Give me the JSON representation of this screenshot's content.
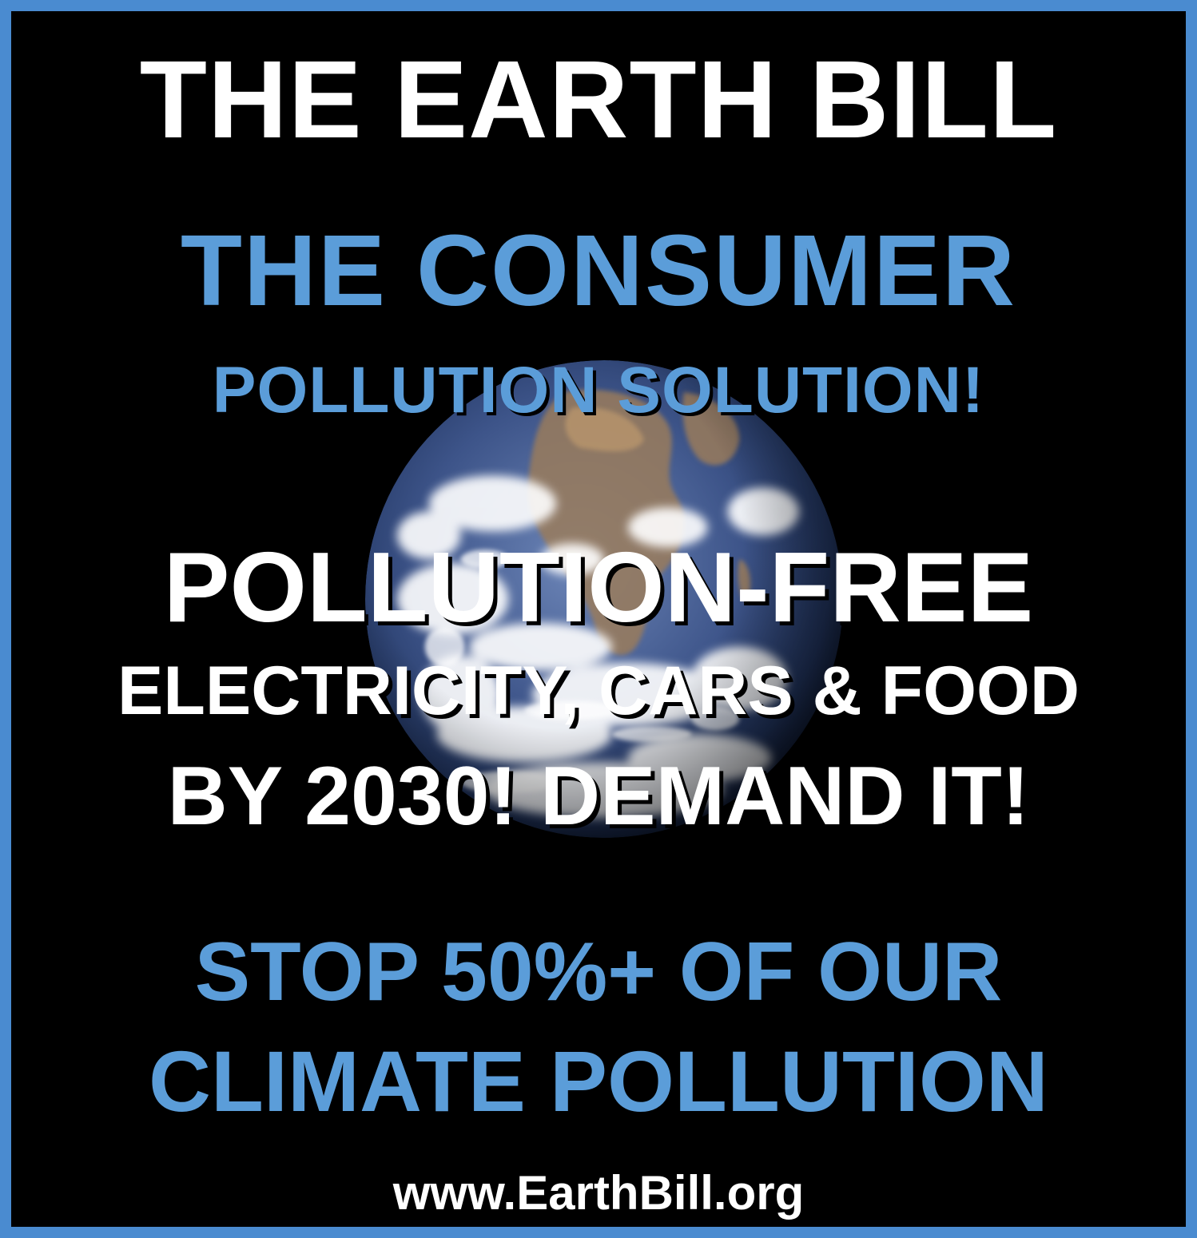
{
  "poster": {
    "title": "THE EARTH BILL",
    "subtitle_line1": "THE CONSUMER",
    "subtitle_line2": "POLLUTION SOLUTION!",
    "headline": "POLLUTION-FREE",
    "items": "ELECTRICITY, CARS & FOOD",
    "deadline": "BY 2030!  DEMAND IT!",
    "goal_line1": "STOP 50%+ OF OUR",
    "goal_line2": "CLIMATE POLLUTION",
    "website": "www.EarthBill.org"
  },
  "colors": {
    "border": "#4a8bd0",
    "accent_text": "#5b9dd9",
    "primary_text": "#ffffff",
    "background": "#000000"
  },
  "image": {
    "icon": "earth-globe-photo"
  }
}
